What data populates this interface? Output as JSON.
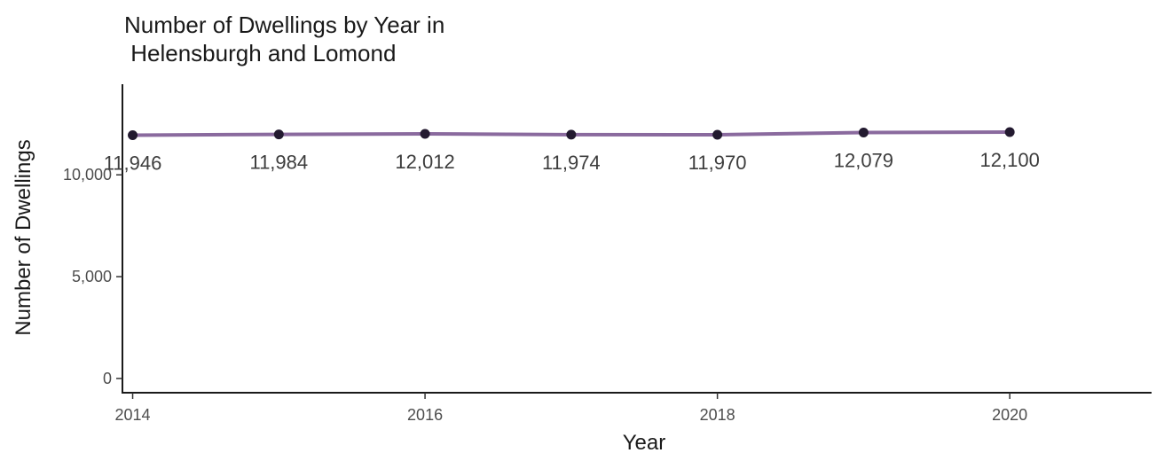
{
  "chart_data": {
    "type": "line",
    "title": "Number of Dwellings by Year in\n Helensburgh and Lomond",
    "xlabel": "Year",
    "ylabel": "Number of Dwellings",
    "x": [
      2014,
      2015,
      2016,
      2017,
      2018,
      2019,
      2020
    ],
    "series": [
      {
        "values": [
          11946,
          11984,
          12012,
          11974,
          11970,
          12079,
          12100
        ],
        "data_labels": [
          "11,946",
          "11,984",
          "12,012",
          "11,974",
          "11,970",
          "12,079",
          "12,100"
        ]
      }
    ],
    "x_ticks": [
      2014,
      2016,
      2018,
      2020
    ],
    "x_tick_labels": [
      "2014",
      "2016",
      "2018",
      "2020"
    ],
    "y_ticks": [
      0,
      5000,
      10000
    ],
    "y_tick_labels": [
      "0",
      "5,000",
      "10,000"
    ],
    "xlim": [
      2013.93,
      2020.97
    ],
    "ylim": [
      -700,
      14450
    ],
    "grid": false,
    "legend": "none",
    "colors": {
      "line": "#8a6a9e",
      "point": "#231a30",
      "axis": "#1a1a1a"
    }
  }
}
